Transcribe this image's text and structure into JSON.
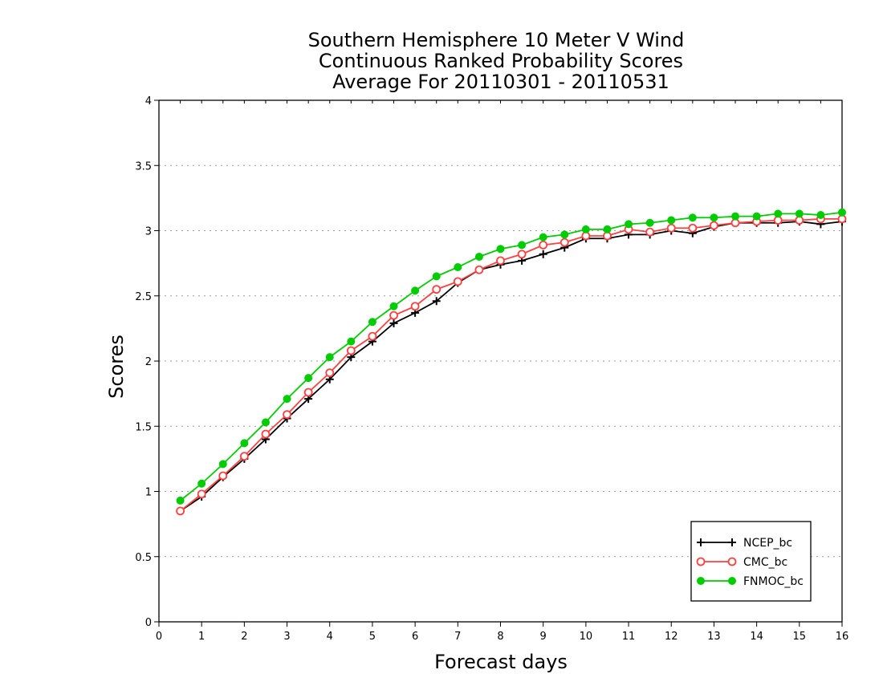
{
  "chart_data": {
    "type": "line",
    "title_lines": [
      "Southern Hemisphere 10 Meter V Wind",
      "Continuous Ranked Probability Scores",
      "Average For 20110301 - 20110531"
    ],
    "xlabel": "Forecast days",
    "ylabel": "Scores",
    "xlim": [
      0,
      16
    ],
    "ylim": [
      0,
      4
    ],
    "xticks": [
      0,
      1,
      2,
      3,
      4,
      5,
      6,
      7,
      8,
      9,
      10,
      11,
      12,
      13,
      14,
      15,
      16
    ],
    "xtick_labels": [
      "0",
      "1",
      "2",
      "3",
      "4",
      "5",
      "6",
      "7",
      "8",
      "9",
      "10",
      "11",
      "12",
      "13",
      "14",
      "15",
      "16"
    ],
    "yticks": [
      0,
      0.5,
      1,
      1.5,
      2,
      2.5,
      3,
      3.5,
      4
    ],
    "ytick_labels": [
      "0",
      "0.5",
      "1",
      "1.5",
      "2",
      "2.5",
      "3",
      "3.5",
      "4"
    ],
    "grid": "horizontal dotted",
    "legend_position": "bottom-right",
    "x": [
      0.5,
      1,
      1.5,
      2,
      2.5,
      3,
      3.5,
      4,
      4.5,
      5,
      5.5,
      6,
      6.5,
      7,
      7.5,
      8,
      8.5,
      9,
      9.5,
      10,
      10.5,
      11,
      11.5,
      12,
      12.5,
      13,
      13.5,
      14,
      14.5,
      15,
      15.5,
      16
    ],
    "series": [
      {
        "name": "NCEP_bc",
        "color": "#000000",
        "marker": "plus",
        "values": [
          0.85,
          0.96,
          1.11,
          1.25,
          1.4,
          1.56,
          1.71,
          1.86,
          2.03,
          2.15,
          2.29,
          2.37,
          2.46,
          2.6,
          2.7,
          2.74,
          2.77,
          2.82,
          2.87,
          2.94,
          2.94,
          2.97,
          2.97,
          3.0,
          2.98,
          3.03,
          3.06,
          3.06,
          3.06,
          3.07,
          3.05,
          3.07
        ]
      },
      {
        "name": "CMC_bc",
        "color": "#ff4040",
        "marker": "open-circle",
        "values": [
          0.85,
          0.98,
          1.12,
          1.27,
          1.44,
          1.59,
          1.76,
          1.91,
          2.08,
          2.19,
          2.35,
          2.42,
          2.55,
          2.61,
          2.7,
          2.77,
          2.82,
          2.89,
          2.91,
          2.96,
          2.96,
          3.01,
          2.99,
          3.02,
          3.02,
          3.04,
          3.06,
          3.07,
          3.08,
          3.08,
          3.09,
          3.09
        ]
      },
      {
        "name": "FNMOC_bc",
        "color": "#00cc00",
        "marker": "filled-circle",
        "values": [
          0.93,
          1.06,
          1.21,
          1.37,
          1.53,
          1.71,
          1.87,
          2.03,
          2.15,
          2.3,
          2.42,
          2.54,
          2.65,
          2.72,
          2.8,
          2.86,
          2.89,
          2.95,
          2.97,
          3.01,
          3.01,
          3.05,
          3.06,
          3.08,
          3.1,
          3.1,
          3.11,
          3.11,
          3.13,
          3.13,
          3.12,
          3.14
        ]
      }
    ]
  }
}
